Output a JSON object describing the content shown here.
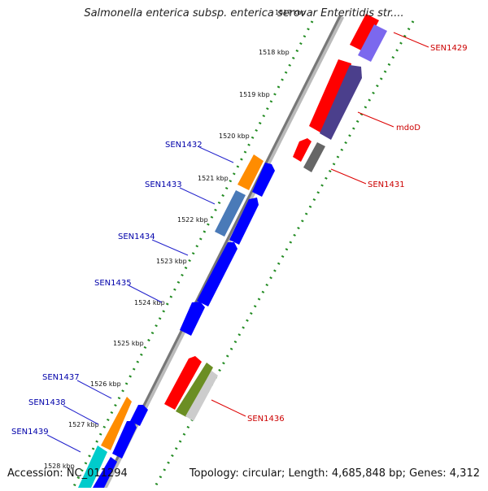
{
  "header": {
    "title": "Salmonella enterica subsp. enterica serovar Enteritidis str...."
  },
  "footer": {
    "accession": "Accession: NC_011294",
    "summary": "Topology: circular; Length: 4,685,848 bp; Genes: 4,312"
  },
  "ticks": [
    "1517 kbp",
    "1518 kbp",
    "1519 kbp",
    "1520 kbp",
    "1521 kbp",
    "1522 kbp",
    "1523 kbp",
    "1524 kbp",
    "1525 kbp",
    "1526 kbp",
    "1527 kbp",
    "1528 kbp"
  ],
  "genes_forward": [
    "SEN1429",
    "mdoD",
    "SEN1431",
    "SEN1436"
  ],
  "genes_reverse": [
    "SEN1432",
    "SEN1433",
    "SEN1434",
    "SEN1435",
    "SEN1437",
    "SEN1438",
    "SEN1439"
  ],
  "colors": {
    "forward_label": "#cc0000",
    "reverse_label": "#0000aa",
    "red": "#ff0000",
    "blue": "#0000ff",
    "slate": "#4b3f8c",
    "gray": "#666666",
    "orange": "#ff8c00",
    "steel": "#4a7ab8",
    "olive": "#6b8e23",
    "cyan": "#00cccc",
    "dot_green": "#228b22"
  }
}
